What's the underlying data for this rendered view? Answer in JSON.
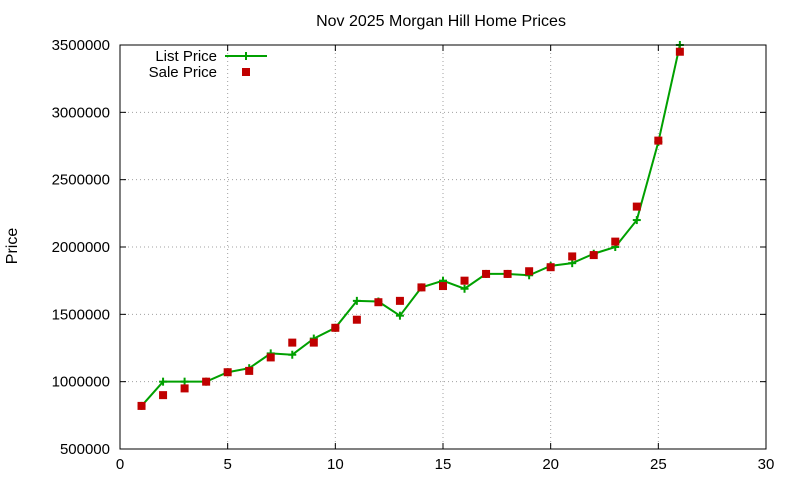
{
  "chart_data": {
    "type": "line",
    "title": "Nov 2025 Morgan Hill Home Prices",
    "xlabel": "",
    "ylabel": "Price",
    "xlim": [
      0,
      30
    ],
    "ylim": [
      500000,
      3500000
    ],
    "x_ticks": [
      0,
      5,
      10,
      15,
      20,
      25,
      30
    ],
    "y_ticks": [
      500000,
      1000000,
      1500000,
      2000000,
      2500000,
      3000000,
      3500000
    ],
    "grid": true,
    "legend_position": "top-left",
    "x": [
      1,
      2,
      3,
      4,
      5,
      6,
      7,
      8,
      9,
      10,
      11,
      12,
      13,
      14,
      15,
      16,
      17,
      18,
      19,
      20,
      21,
      22,
      23,
      24,
      25,
      26
    ],
    "series": [
      {
        "name": "List Price",
        "style": "line-plus",
        "color": "#00a000",
        "values": [
          820000,
          1000000,
          1000000,
          1000000,
          1070000,
          1100000,
          1210000,
          1200000,
          1320000,
          1400000,
          1600000,
          1595000,
          1490000,
          1700000,
          1750000,
          1690000,
          1800000,
          1800000,
          1790000,
          1860000,
          1880000,
          1950000,
          2000000,
          2200000,
          2780000,
          3500000
        ]
      },
      {
        "name": "Sale Price",
        "style": "square-points",
        "color": "#c00000",
        "values": [
          820000,
          900000,
          950000,
          1000000,
          1070000,
          1080000,
          1180000,
          1290000,
          1290000,
          1400000,
          1460000,
          1590000,
          1600000,
          1700000,
          1710000,
          1750000,
          1800000,
          1800000,
          1820000,
          1850000,
          1930000,
          1940000,
          2040000,
          2300000,
          2790000,
          3450000
        ]
      }
    ]
  }
}
